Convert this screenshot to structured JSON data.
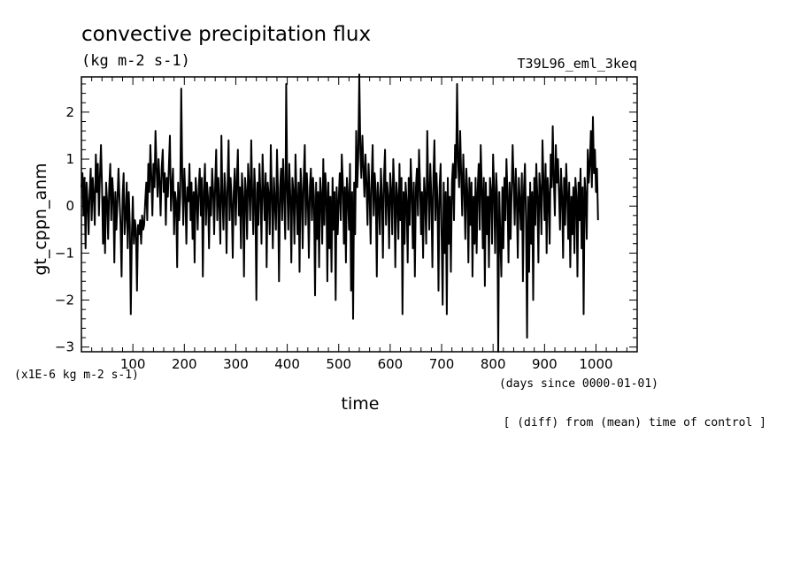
{
  "chart_data": {
    "type": "line",
    "title": "convective precipitation flux",
    "units": "(kg m-2 s-1)",
    "experiment": "T39L96_eml_3keq",
    "xlabel": "time",
    "xunits": "(days since 0000-01-01)",
    "ylabel": "gt_cppn_anm",
    "yunits": "(x1E-6 kg m-2 s-1)",
    "note": "[ (diff) from (mean) time of control ]",
    "xlim": [
      0,
      1080
    ],
    "ylim": [
      -3.1,
      2.75
    ],
    "x_ticks": [
      100,
      200,
      300,
      400,
      500,
      600,
      700,
      800,
      900,
      1000
    ],
    "y_ticks": [
      -3,
      -2,
      -1,
      0,
      1,
      2
    ],
    "series": [
      {
        "name": "gt_cppn_anm",
        "step_days": 2,
        "values": [
          0.4,
          0.7,
          -0.2,
          0.6,
          -0.9,
          0.5,
          0.1,
          -0.6,
          0.3,
          0.8,
          -0.3,
          0.6,
          0.2,
          -0.4,
          1.1,
          0.3,
          0.9,
          -0.2,
          0.6,
          1.3,
          0.4,
          -0.8,
          0.2,
          -1.0,
          0.5,
          0.1,
          -0.7,
          0.4,
          0.9,
          -0.3,
          0.6,
          0.2,
          -1.2,
          0.3,
          -0.5,
          0.1,
          0.8,
          0.2,
          -0.4,
          -1.5,
          0.2,
          0.7,
          -0.6,
          -0.2,
          0.5,
          -0.9,
          0.3,
          -0.4,
          -2.3,
          -0.6,
          0.2,
          -0.8,
          -0.3,
          -0.5,
          -1.8,
          -0.4,
          -0.6,
          -0.3,
          -0.8,
          -0.2,
          -0.5,
          -0.4,
          0.1,
          0.5,
          -0.3,
          0.9,
          0.3,
          1.3,
          0.6,
          -0.2,
          0.9,
          0.4,
          1.6,
          0.8,
          0.2,
          1.0,
          0.5,
          -0.2,
          0.8,
          1.2,
          0.3,
          0.7,
          -0.4,
          0.6,
          0.2,
          0.9,
          1.5,
          -0.1,
          0.4,
          0.8,
          -0.6,
          0.3,
          0.1,
          -1.3,
          0.5,
          -0.3,
          0.2,
          2.5,
          0.6,
          -0.4,
          0.8,
          0.2,
          -0.8,
          0.4,
          0.1,
          0.9,
          -0.3,
          0.5,
          -0.7,
          0.3,
          -1.2,
          0.6,
          0.2,
          -0.5,
          0.4,
          0.8,
          -0.2,
          0.6,
          -1.5,
          0.3,
          0.9,
          -0.4,
          0.5,
          0.2,
          -0.9,
          0.4,
          -0.2,
          0.8,
          0.3,
          -0.6,
          0.5,
          1.2,
          -0.3,
          0.6,
          0.1,
          -0.8,
          1.5,
          0.2,
          -0.5,
          0.7,
          0.3,
          -1.0,
          0.4,
          1.4,
          -0.3,
          0.6,
          0.1,
          -1.1,
          0.3,
          0.8,
          -0.4,
          0.5,
          1.2,
          -0.2,
          0.4,
          -0.9,
          0.7,
          0.2,
          -1.5,
          0.6,
          0.3,
          -0.7,
          0.9,
          0.4,
          -0.3,
          1.4,
          0.2,
          -0.6,
          0.8,
          0.3,
          -2.0,
          0.5,
          -0.4,
          0.9,
          0.2,
          -0.8,
          1.1,
          0.4,
          -0.3,
          0.7,
          -1.3,
          0.5,
          0.2,
          -0.6,
          1.3,
          0.3,
          -0.9,
          0.6,
          0.1,
          -0.5,
          1.2,
          0.3,
          -1.6,
          0.4,
          0.8,
          -0.3,
          1.0,
          0.2,
          -0.7,
          2.6,
          0.4,
          -0.5,
          0.9,
          0.2,
          -1.2,
          0.6,
          0.3,
          -0.8,
          1.1,
          0.2,
          -0.6,
          0.5,
          -1.4,
          0.8,
          0.3,
          -0.9,
          0.6,
          1.3,
          -0.4,
          0.7,
          0.1,
          -1.1,
          0.4,
          0.8,
          -0.3,
          0.6,
          0.2,
          -1.9,
          0.5,
          -0.7,
          0.3,
          -1.3,
          0.6,
          0.2,
          -0.8,
          1.0,
          -0.4,
          0.7,
          0.3,
          -1.6,
          0.5,
          -0.9,
          0.2,
          -1.4,
          0.6,
          -0.5,
          0.3,
          -2.0,
          0.4,
          -0.6,
          0.1,
          0.7,
          -0.3,
          1.1,
          0.5,
          -0.8,
          0.4,
          -1.2,
          0.6,
          0.2,
          -0.5,
          0.9,
          -1.8,
          0.3,
          -2.4,
          0.5,
          -0.6,
          1.6,
          0.4,
          1.0,
          2.8,
          1.2,
          0.6,
          1.5,
          0.8,
          0.2,
          1.1,
          0.5,
          -0.4,
          0.9,
          0.3,
          -0.8,
          0.6,
          1.3,
          -0.2,
          0.7,
          0.3,
          -1.5,
          0.5,
          0.1,
          -0.6,
          0.8,
          0.2,
          -1.1,
          0.6,
          1.2,
          -0.4,
          0.5,
          0.2,
          -0.9,
          0.7,
          0.3,
          -0.6,
          1.0,
          0.4,
          -1.3,
          0.5,
          0.2,
          -0.7,
          0.9,
          -0.3,
          0.6,
          -2.3,
          0.3,
          -0.8,
          0.5,
          0.1,
          -1.2,
          0.6,
          -0.4,
          1.0,
          0.3,
          -0.9,
          0.5,
          -1.5,
          0.4,
          0.8,
          -0.2,
          1.2,
          0.5,
          -0.6,
          0.3,
          -1.1,
          0.6,
          0.2,
          -0.8,
          1.6,
          0.4,
          -0.5,
          0.9,
          0.2,
          -1.3,
          0.6,
          1.4,
          -0.3,
          0.7,
          0.1,
          -1.8,
          0.4,
          0.9,
          -0.6,
          -2.1,
          0.5,
          -1.0,
          0.3,
          -2.3,
          0.6,
          -0.8,
          0.2,
          -1.4,
          0.5,
          0.9,
          -0.3,
          1.3,
          0.6,
          2.6,
          1.0,
          0.4,
          1.6,
          0.7,
          -0.2,
          1.1,
          0.4,
          -0.7,
          0.8,
          0.3,
          -1.2,
          0.6,
          -0.4,
          0.5,
          -1.5,
          0.2,
          -0.8,
          0.6,
          -1.0,
          0.3,
          0.9,
          -0.5,
          1.3,
          0.4,
          -0.9,
          0.6,
          -1.7,
          0.5,
          -0.6,
          0.2,
          -1.3,
          0.6,
          0.3,
          -0.8,
          1.1,
          0.4,
          -1.0,
          0.7,
          0.2,
          -3.1,
          0.3,
          -0.6,
          -1.5,
          0.4,
          -0.9,
          0.6,
          -0.3,
          1.0,
          0.2,
          -1.2,
          0.5,
          -0.7,
          0.3,
          1.3,
          0.5,
          -0.4,
          0.8,
          0.2,
          -1.1,
          0.6,
          0.1,
          -0.5,
          0.7,
          -1.6,
          0.4,
          0.9,
          -0.3,
          -2.8,
          0.2,
          -1.4,
          0.5,
          -0.8,
          0.3,
          -2.0,
          0.6,
          -0.4,
          0.9,
          0.2,
          -1.2,
          0.7,
          0.3,
          -0.6,
          1.4,
          0.5,
          -0.3,
          0.9,
          -1.0,
          0.6,
          0.2,
          -0.8,
          1.1,
          0.4,
          1.7,
          0.6,
          -0.2,
          1.3,
          0.5,
          1.0,
          0.3,
          -0.5,
          0.8,
          0.2,
          -1.1,
          0.6,
          -0.4,
          0.9,
          0.3,
          -0.7,
          0.5,
          -1.3,
          0.2,
          -0.6,
          0.4,
          -1.0,
          0.6,
          0.2,
          -1.5,
          0.5,
          -0.3,
          0.8,
          -0.9,
          0.4,
          -2.3,
          0.6,
          0.2,
          -0.7,
          1.2,
          0.5,
          0.9,
          1.6,
          0.4,
          1.9,
          0.7,
          1.2,
          0.3,
          0.8,
          -0.3
        ]
      }
    ]
  }
}
